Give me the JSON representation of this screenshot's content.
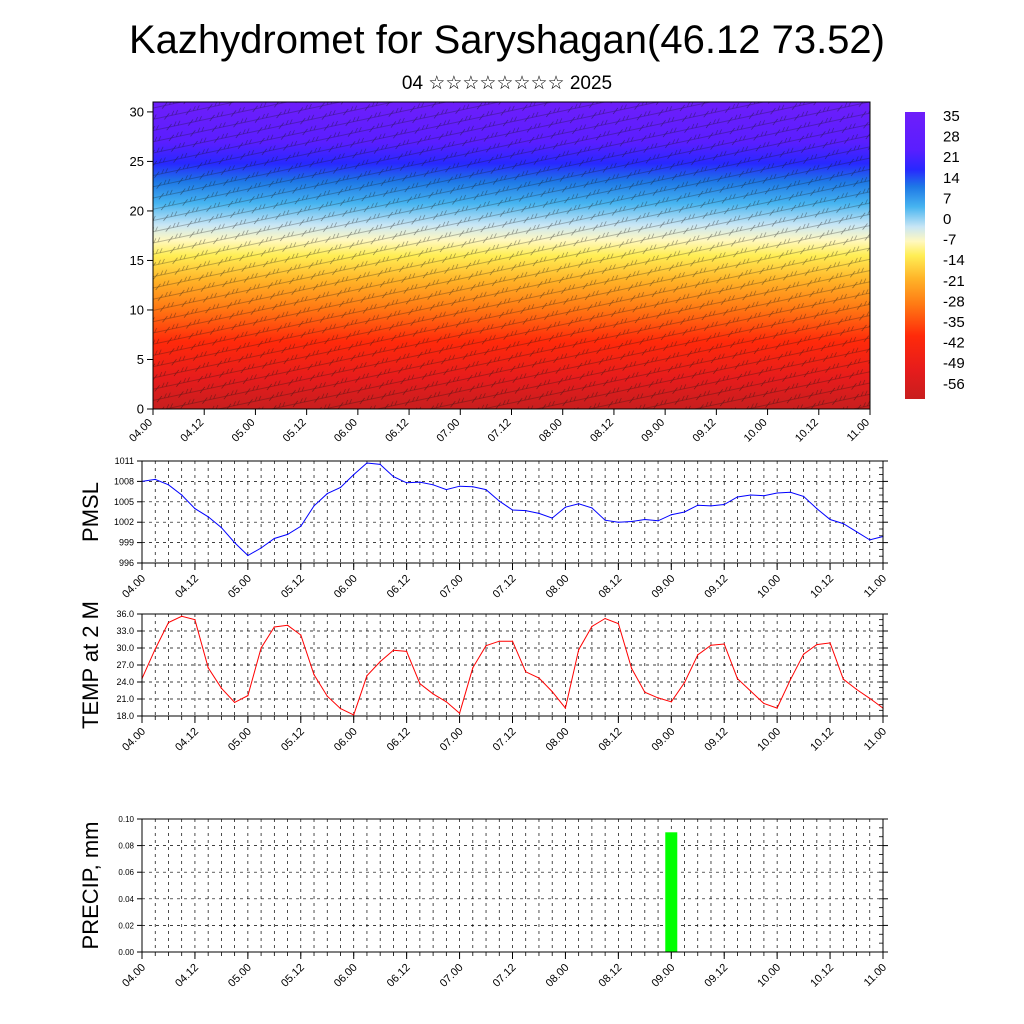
{
  "header": {
    "title": "Kazhydromet for Saryshagan(46.12 73.52)",
    "subtitle": "04 ☆☆☆☆☆☆☆☆ 2025"
  },
  "time_ticks": [
    "04.00",
    "04.12",
    "05.00",
    "05.12",
    "06.00",
    "06.12",
    "07.00",
    "07.12",
    "08.00",
    "08.12",
    "09.00",
    "09.12",
    "10.00",
    "10.12",
    "11.00"
  ],
  "colors": {
    "pmsl": "#0000ff",
    "temp": "#ff0000",
    "precip": "#00ff00"
  },
  "chart_data": [
    {
      "type": "heatmap",
      "title": "",
      "x_ticks": [
        "04.00",
        "04.12",
        "05.00",
        "05.12",
        "06.00",
        "06.12",
        "07.00",
        "07.12",
        "08.00",
        "08.12",
        "09.00",
        "09.12",
        "10.00",
        "10.12",
        "11.00"
      ],
      "y_ticks": [
        0,
        5,
        10,
        15,
        20,
        25,
        30
      ],
      "ylim": [
        0,
        31
      ],
      "overlay": "wind barbs",
      "colorbar_labels": [
        "35",
        "28",
        "21",
        "14",
        "7",
        "0",
        "-7",
        "-14",
        "-21",
        "-28",
        "-35",
        "-42",
        "-49",
        "-56"
      ],
      "colorbar_range": [
        -60,
        38
      ],
      "temperature_profile_by_height": {
        "height": [
          0,
          5,
          10,
          15,
          18,
          20,
          23,
          25,
          27,
          31
        ],
        "value": [
          30,
          21,
          12,
          0,
          -10,
          -22,
          -35,
          -52,
          -55,
          -58
        ]
      }
    },
    {
      "type": "line",
      "ylabel": "PMSL",
      "ylim": [
        996,
        1011
      ],
      "y_ticks": [
        "996",
        "999",
        "1002",
        "1005",
        "1008",
        "1011"
      ],
      "x_ticks": [
        "04.00",
        "04.12",
        "05.00",
        "05.12",
        "06.00",
        "06.12",
        "07.00",
        "07.12",
        "08.00",
        "08.12",
        "09.00",
        "09.12",
        "10.00",
        "10.12",
        "11.00"
      ],
      "x": [
        0,
        3,
        6,
        9,
        12,
        15,
        18,
        21,
        24,
        27,
        30,
        33,
        36,
        39,
        42,
        45,
        48,
        51,
        54,
        57,
        60,
        63,
        66,
        69,
        72,
        75,
        78,
        81,
        84,
        87,
        90,
        93,
        96,
        99,
        102,
        105,
        108,
        111,
        114,
        117,
        120,
        123,
        126,
        129,
        132,
        135,
        138,
        141,
        144,
        147,
        150,
        153,
        156,
        159,
        162,
        165,
        168
      ],
      "series": [
        {
          "values": [
            1008,
            1008.3,
            1007.5,
            1006,
            1004,
            1002.8,
            1001.2,
            999,
            997.1,
            998.2,
            999.6,
            1000.2,
            1001.4,
            1004.4,
            1006.2,
            1007.1,
            1009,
            1010.7,
            1010.5,
            1008.7,
            1007.8,
            1007.9,
            1007.5,
            1006.8,
            1007.3,
            1007.2,
            1006.8,
            1005.1,
            1003.8,
            1003.7,
            1003.3,
            1002.6,
            1004.2,
            1004.7,
            1004.1,
            1002.3,
            1002,
            1002.1,
            1002.4,
            1002.2,
            1003.1,
            1003.5,
            1004.5,
            1004.4,
            1004.6,
            1005.7,
            1006,
            1005.9,
            1006.3,
            1006.4,
            1005.8,
            1004,
            1002.4,
            1001.8,
            1000.6,
            999.4,
            999.9
          ]
        }
      ]
    },
    {
      "type": "line",
      "ylabel": "TEMP at 2 M",
      "ylim": [
        18,
        36
      ],
      "y_ticks": [
        "18.0",
        "21.0",
        "24.0",
        "27.0",
        "30.0",
        "33.0",
        "36.0"
      ],
      "x_ticks": [
        "04.00",
        "04.12",
        "05.00",
        "05.12",
        "06.00",
        "06.12",
        "07.00",
        "07.12",
        "08.00",
        "08.12",
        "09.00",
        "09.12",
        "10.00",
        "10.12",
        "11.00"
      ],
      "x": [
        0,
        3,
        6,
        9,
        12,
        15,
        18,
        21,
        24,
        27,
        30,
        33,
        36,
        39,
        42,
        45,
        48,
        51,
        54,
        57,
        60,
        63,
        66,
        69,
        72,
        75,
        78,
        81,
        84,
        87,
        90,
        93,
        96,
        99,
        102,
        105,
        108,
        111,
        114,
        117,
        120,
        123,
        126,
        129,
        132,
        135,
        138,
        141,
        144,
        147,
        150,
        153,
        156,
        159,
        162,
        165,
        168
      ],
      "series": [
        {
          "values": [
            24.6,
            29.8,
            34.5,
            35.6,
            35,
            26.5,
            22.9,
            20.4,
            21.6,
            30,
            33.7,
            34,
            32.3,
            25.3,
            21.5,
            19.3,
            18.2,
            25.1,
            27.6,
            29.6,
            29.4,
            23.7,
            21.9,
            20.5,
            18.5,
            26.5,
            30.4,
            31.2,
            31.2,
            25.8,
            24.7,
            22.3,
            19.4,
            29.7,
            33.8,
            35.2,
            34.3,
            26.4,
            22.2,
            21.2,
            20.5,
            23.9,
            28.8,
            30.5,
            30.7,
            24.6,
            22.4,
            20.2,
            19.4,
            24.4,
            28.9,
            30.6,
            30.9,
            24.5,
            22.7,
            21.1,
            19.4
          ]
        }
      ]
    },
    {
      "type": "bar",
      "ylabel": "PRECIP, mm",
      "ylim": [
        0,
        0.1
      ],
      "y_ticks": [
        "0.00",
        "0.02",
        "0.04",
        "0.06",
        "0.08",
        "0.10"
      ],
      "x_ticks": [
        "04.00",
        "04.12",
        "05.00",
        "05.12",
        "06.00",
        "06.12",
        "07.00",
        "07.12",
        "08.00",
        "08.12",
        "09.00",
        "09.12",
        "10.00",
        "10.12",
        "11.00"
      ],
      "bars": [
        {
          "x": 120,
          "value": 0.09
        }
      ]
    }
  ]
}
